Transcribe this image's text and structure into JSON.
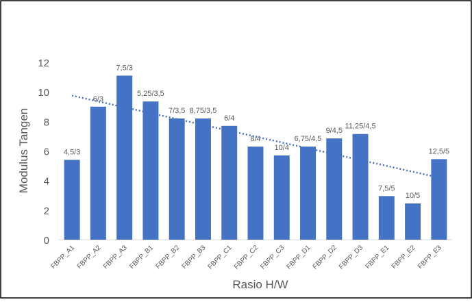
{
  "chart_data": {
    "type": "bar",
    "x_label": "Rasio H/W",
    "y_label": "Modulus Tangen",
    "categories": [
      "FBPP_A1",
      "FBPP_A2",
      "FBPP_A3",
      "FBPP_B1",
      "FBPP_B2",
      "FBPP_B3",
      "FBPP_C1",
      "FBPP_C2",
      "FBPP_C3",
      "FBPP_D1",
      "FBPP_D2",
      "FBPP_D3",
      "FBPP_E1",
      "FBPP_E2",
      "FBPP_E3"
    ],
    "values": [
      5.4,
      9.0,
      11.1,
      9.35,
      8.2,
      8.2,
      7.7,
      6.3,
      5.7,
      6.3,
      6.85,
      7.15,
      2.95,
      2.45,
      5.45
    ],
    "annotations": [
      "4,5/3",
      "6/3",
      "7,5/3",
      "5,25/3,5",
      "7/3,5",
      "8,75/3,5",
      "6/4",
      "8/4",
      "10/4",
      "6,75/4,5",
      "9/4,5",
      "11,25/4,5",
      "7,5/5",
      "10/5",
      "12,5/5"
    ],
    "color": "#4472c4",
    "trendline": {
      "type": "linear",
      "color": "#4472c4",
      "values": [
        9.75,
        4.2
      ]
    },
    "ylim": [
      0,
      12
    ],
    "yticks": [
      0,
      2,
      4,
      6,
      8,
      10,
      12
    ],
    "grid": false
  }
}
